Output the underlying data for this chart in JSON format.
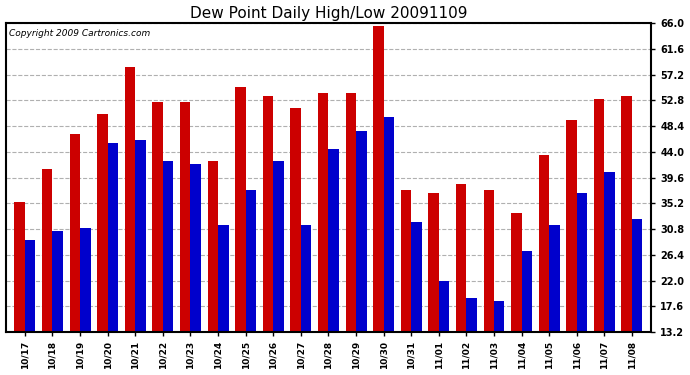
{
  "title": "Dew Point Daily High/Low 20091109",
  "copyright": "Copyright 2009 Cartronics.com",
  "dates": [
    "10/17",
    "10/18",
    "10/19",
    "10/20",
    "10/21",
    "10/22",
    "10/23",
    "10/24",
    "10/25",
    "10/26",
    "10/27",
    "10/28",
    "10/29",
    "10/30",
    "10/31",
    "11/01",
    "11/02",
    "11/03",
    "11/04",
    "11/05",
    "11/06",
    "11/07",
    "11/08"
  ],
  "high": [
    35.5,
    41.0,
    47.0,
    50.5,
    58.5,
    52.5,
    52.5,
    42.5,
    55.0,
    53.5,
    51.5,
    54.0,
    54.0,
    65.5,
    37.5,
    37.0,
    38.5,
    37.5,
    33.5,
    43.5,
    49.5,
    53.0,
    53.5
  ],
  "low": [
    29.0,
    30.5,
    31.0,
    45.5,
    46.0,
    42.5,
    42.0,
    31.5,
    37.5,
    42.5,
    31.5,
    44.5,
    47.5,
    50.0,
    32.0,
    22.0,
    19.0,
    18.5,
    27.0,
    31.5,
    37.0,
    40.5,
    32.5
  ],
  "high_color": "#cc0000",
  "low_color": "#0000cc",
  "ylim_min": 13.2,
  "ylim_max": 66.0,
  "yticks": [
    13.2,
    17.6,
    22.0,
    26.4,
    30.8,
    35.2,
    39.6,
    44.0,
    48.4,
    52.8,
    57.2,
    61.6,
    66.0
  ],
  "background_color": "#ffffff",
  "plot_bg_color": "#ffffff",
  "grid_color": "#b0b0b0",
  "title_fontsize": 11,
  "copyright_fontsize": 6.5,
  "bar_width": 0.38,
  "figwidth": 6.9,
  "figheight": 3.75,
  "dpi": 100
}
